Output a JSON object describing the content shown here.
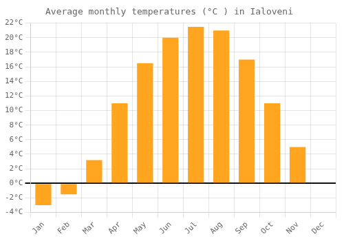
{
  "chart_data": {
    "type": "bar",
    "title": "Average monthly temperatures (°C ) in Ialoveni",
    "categories": [
      "Jan",
      "Feb",
      "Mar",
      "Apr",
      "May",
      "Jun",
      "Jul",
      "Aug",
      "Sep",
      "Oct",
      "Nov",
      "Dec"
    ],
    "values": [
      -3.0,
      -1.5,
      3.2,
      11.0,
      16.5,
      20.0,
      21.5,
      21.0,
      17.0,
      11.0,
      5.0,
      0.0
    ],
    "color": "#FFA520",
    "ylim": [
      -4,
      22
    ],
    "yticks": [
      {
        "value": -4,
        "label": "-4°C"
      },
      {
        "value": -2,
        "label": "-2°C"
      },
      {
        "value": 0,
        "label": "0°C"
      },
      {
        "value": 2,
        "label": "2°C"
      },
      {
        "value": 4,
        "label": "4°C"
      },
      {
        "value": 6,
        "label": "6°C"
      },
      {
        "value": 8,
        "label": "8°C"
      },
      {
        "value": 10,
        "label": "10°C"
      },
      {
        "value": 12,
        "label": "12°C"
      },
      {
        "value": 14,
        "label": "14°C"
      },
      {
        "value": 16,
        "label": "16°C"
      },
      {
        "value": 18,
        "label": "18°C"
      },
      {
        "value": 20,
        "label": "20°C"
      },
      {
        "value": 22,
        "label": "22°C"
      }
    ],
    "grid": true
  }
}
